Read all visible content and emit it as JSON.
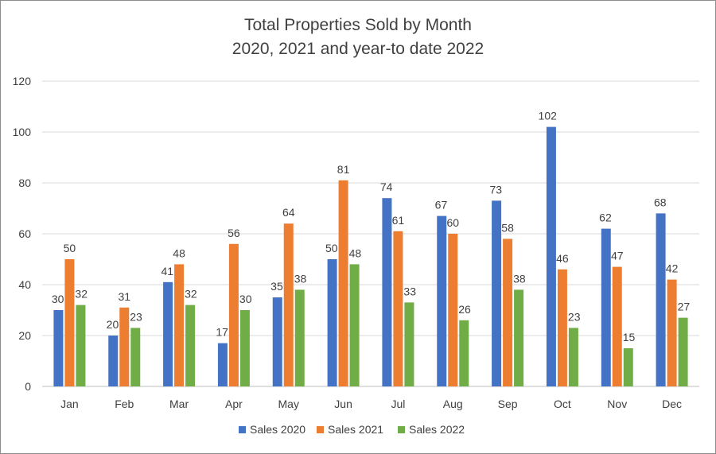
{
  "chart_data": {
    "type": "bar",
    "title": "Total Properties Sold by Month",
    "subtitle": "2020, 2021 and year-to date 2022",
    "categories": [
      "Jan",
      "Feb",
      "Mar",
      "Apr",
      "May",
      "Jun",
      "Jul",
      "Aug",
      "Sep",
      "Oct",
      "Nov",
      "Dec"
    ],
    "series": [
      {
        "name": "Sales 2020",
        "color": "#4472C4",
        "values": [
          30,
          20,
          41,
          17,
          35,
          50,
          74,
          67,
          73,
          102,
          62,
          68
        ]
      },
      {
        "name": "Sales 2021",
        "color": "#ED7D31",
        "values": [
          50,
          31,
          48,
          56,
          64,
          81,
          61,
          60,
          58,
          46,
          47,
          42
        ]
      },
      {
        "name": "Sales 2022",
        "color": "#70AD47",
        "values": [
          32,
          23,
          32,
          30,
          38,
          48,
          33,
          26,
          38,
          23,
          15,
          27
        ]
      }
    ],
    "ylim": [
      0,
      120
    ],
    "yticks": [
      0,
      20,
      40,
      60,
      80,
      100,
      120
    ],
    "grid": true,
    "legend_position": "bottom",
    "data_labels": true
  }
}
